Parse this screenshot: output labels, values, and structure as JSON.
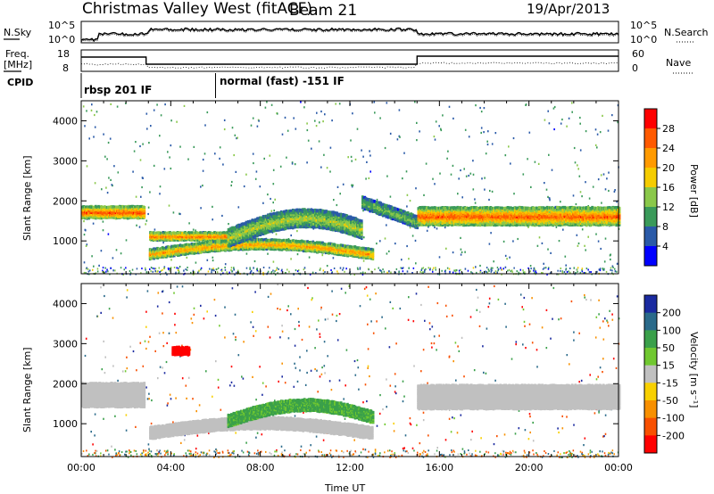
{
  "header": {
    "title": "Christmas Valley West (fitACF)",
    "beam": "Beam 21",
    "date": "19/Apr/2013"
  },
  "status_panels": {
    "nsky_label": "N.Sky",
    "nsearch_label": "N.Search",
    "freq_label_1": "Freq.",
    "freq_label_2": "[MHz]",
    "nave_label": "Nave",
    "cpid_label": "CPID",
    "noise_ticks_left": [
      "10^5",
      "10^0"
    ],
    "noise_ticks_right": [
      "10^5",
      "10^0"
    ],
    "freq_ticks": [
      "18",
      "8"
    ],
    "nave_ticks": [
      "60",
      "0"
    ],
    "cpid_segments": [
      {
        "start_hour": 0.0,
        "label": "rbsp 201 IF"
      },
      {
        "start_hour": 6.0,
        "label": "normal (fast) -151 IF"
      }
    ]
  },
  "power_colorbar": {
    "label": "Power [dB]",
    "ticks": [
      "28",
      "24",
      "20",
      "16",
      "12",
      "8",
      "4"
    ],
    "colors": [
      "#ff0000",
      "#ff5a00",
      "#ff9a00",
      "#f5cc00",
      "#8ac84a",
      "#3a9a5a",
      "#2a5aa8",
      "#0000ff"
    ]
  },
  "velocity_colorbar": {
    "label": "Velocity [m s⁻¹]",
    "ticks": [
      "200",
      "100",
      "50",
      "15",
      "-15",
      "-50",
      "-100",
      "-200"
    ],
    "colors": [
      "#1a2aa0",
      "#2a6a8a",
      "#3aa04a",
      "#70c830",
      "#c0c0c0",
      "#f8d000",
      "#f89000",
      "#f85000",
      "#ff0000"
    ]
  },
  "chart_data": [
    {
      "type": "heatmap",
      "panel": "power",
      "ylabel": "Slant Range [km]",
      "y_ticks": [
        1000,
        2000,
        3000,
        4000
      ],
      "ylim": [
        180,
        4500
      ],
      "xlim": [
        0,
        24
      ],
      "x_unit": "hours UT",
      "value_unit": "dB",
      "value_range": [
        0,
        30
      ],
      "echo_bands": [
        {
          "t_start": 0.0,
          "t_end": 2.8,
          "range_center": 1750,
          "thickness": 300,
          "power": 27
        },
        {
          "t_start": 3.0,
          "t_end": 6.5,
          "range_center": 1150,
          "thickness": 200,
          "power": 25
        },
        {
          "t_start": 3.0,
          "t_end": 13.0,
          "range_center": 700,
          "thickness": 250,
          "power": 22
        },
        {
          "t_start": 6.5,
          "t_end": 12.5,
          "range_center": 1450,
          "thickness": 450,
          "power": 15
        },
        {
          "t_start": 12.5,
          "t_end": 15.0,
          "range_center": 1500,
          "thickness": 300,
          "power": 12
        },
        {
          "t_start": 15.0,
          "t_end": 24.0,
          "range_center": 1650,
          "thickness": 450,
          "power": 26
        }
      ]
    },
    {
      "type": "heatmap",
      "panel": "velocity",
      "ylabel": "Slant Range [km]",
      "xlabel": "Time UT",
      "x_ticks": [
        "00:00",
        "04:00",
        "08:00",
        "12:00",
        "16:00",
        "20:00",
        "00:00"
      ],
      "y_ticks": [
        1000,
        2000,
        3000,
        4000
      ],
      "ylim": [
        180,
        4500
      ],
      "xlim": [
        0,
        24
      ],
      "value_unit": "m/s",
      "value_range": [
        -250,
        250
      ],
      "echo_bands": [
        {
          "t_start": 0.0,
          "t_end": 2.8,
          "range_center": 1750,
          "thickness": 600,
          "velocity": 0
        },
        {
          "t_start": 3.0,
          "t_end": 13.0,
          "range_center": 800,
          "thickness": 300,
          "velocity": 0
        },
        {
          "t_start": 6.5,
          "t_end": 13.0,
          "range_center": 1300,
          "thickness": 300,
          "velocity": 40
        },
        {
          "t_start": 15.0,
          "t_end": 24.0,
          "range_center": 1700,
          "thickness": 600,
          "velocity": 0
        },
        {
          "t_start": 4.0,
          "t_end": 4.8,
          "range_center": 2850,
          "thickness": 200,
          "velocity": -200
        }
      ]
    }
  ]
}
